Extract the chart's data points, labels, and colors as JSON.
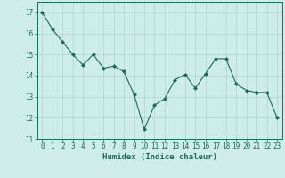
{
  "x": [
    0,
    1,
    2,
    3,
    4,
    5,
    6,
    7,
    8,
    9,
    10,
    11,
    12,
    13,
    14,
    15,
    16,
    17,
    18,
    19,
    20,
    21,
    22,
    23
  ],
  "y": [
    17.0,
    16.2,
    15.6,
    15.0,
    14.5,
    15.0,
    14.35,
    14.45,
    14.2,
    13.1,
    11.45,
    12.6,
    12.9,
    13.8,
    14.05,
    13.4,
    14.1,
    14.8,
    14.8,
    13.6,
    13.3,
    13.2,
    13.2,
    12.0
  ],
  "line_color": "#1a6b5a",
  "marker": "D",
  "marker_size": 2.0,
  "bg_color": "#ceecea",
  "grid_color": "#aed4d0",
  "xlabel": "Humidex (Indice chaleur)",
  "ylim": [
    11,
    17.5
  ],
  "xlim": [
    -0.5,
    23.5
  ],
  "yticks": [
    11,
    12,
    13,
    14,
    15,
    16,
    17
  ],
  "xticks": [
    0,
    1,
    2,
    3,
    4,
    5,
    6,
    7,
    8,
    9,
    10,
    11,
    12,
    13,
    14,
    15,
    16,
    17,
    18,
    19,
    20,
    21,
    22,
    23
  ],
  "tick_color": "#1a6b5a",
  "label_fontsize": 6.5,
  "tick_fontsize": 5.5
}
